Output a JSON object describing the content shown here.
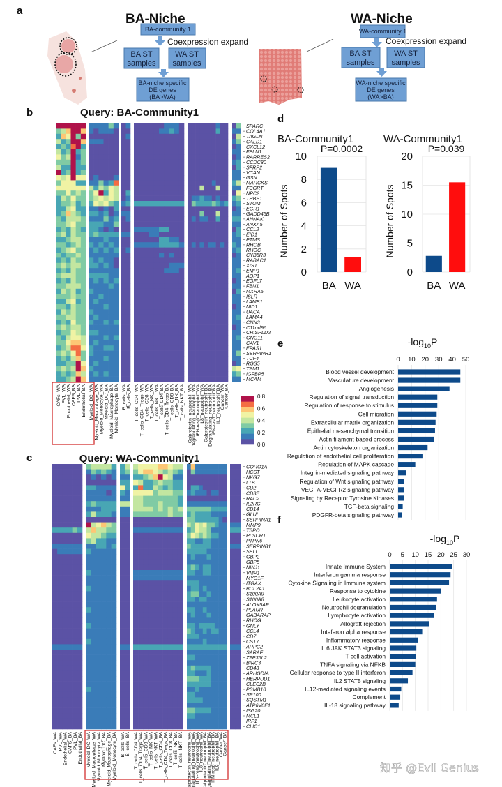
{
  "panel_labels": {
    "a": "a",
    "b": "b",
    "c": "c",
    "d": "d",
    "e": "e",
    "f": "f"
  },
  "panel_a": {
    "ba": {
      "title": "BA-Niche",
      "community": "BA-community 1",
      "expand": "Coexpression expand",
      "samples_ba": [
        "BA ST",
        "samples"
      ],
      "samples_wa": [
        "WA ST",
        "samples"
      ],
      "result": [
        "BA-niche specific",
        "DE genes",
        "(BA>WA)"
      ]
    },
    "wa": {
      "title": "WA-Niche",
      "community": "WA-community 1",
      "expand": "Coexpression expand",
      "samples_ba": [
        "BA ST",
        "samples"
      ],
      "samples_wa": [
        "WA ST",
        "samples"
      ],
      "result": [
        "WA-niche specific",
        "DE genes",
        "(WA>BA)"
      ]
    }
  },
  "colorbar": {
    "ticks": [
      "0.8",
      "0.6",
      "0.4",
      "0.2",
      "0.0"
    ],
    "colormap": [
      "#5b52a5",
      "#3a7cb8",
      "#48a6b4",
      "#80cba4",
      "#c3e6a0",
      "#f0f3a4",
      "#fdc675",
      "#f46d43",
      "#b0124a"
    ]
  },
  "watermark": "知乎 @Evil Genius",
  "chart_data": [
    {
      "type": "heatmap",
      "title": "Query: BA-Community1",
      "range": [
        0,
        0.8
      ],
      "columns": [
        "CAFs_WA",
        "PVL_WA",
        "Endothelial_WA",
        "CAFS_BA",
        "PVL_BA",
        "Endothelial_BA",
        "Myeloid_DC_WA",
        "Myeloid_Macrophage_WA",
        "Myeloid_Monocyte_WA",
        "Myeloid_DC_BA",
        "Myeloid_Macrophage_BA",
        "Myeloid_Monocyte_BA",
        "B_cells_WA",
        "B_cells_BA",
        "T_cells_CD4_WA",
        "T_cells_CD4_Tregs_WA",
        "T_cells_CD8_WA",
        "T_cells_NK_WA",
        "T_cells_NKT_WA",
        "T_cells_CD4_BA",
        "T_cells_CD4_Tregs_BA",
        "T_cells_CD8_BA",
        "T_cells_NK_BA",
        "T_cells_NKT_BA",
        "Calprotectin_neutrophil_WA",
        "Degranulating_neutrophil_WA",
        "IFN-resp_neutrophil_WA",
        "IL8_neutrophil_WA",
        "Calprotectin_neutrophil_BA",
        "Degranulating_neutrophil_BA",
        "IFN-resp_neutrophil_BA",
        "IL8_neutrophil_BA",
        "Cancer_WA",
        "Cancer_BA"
      ],
      "highlighted_columns": [
        "CAFs_WA",
        "PVL_WA",
        "Endothelial_WA",
        "CAFS_BA",
        "PVL_BA",
        "Endothelial_BA"
      ],
      "genes": [
        "SPARC",
        "COL4A1",
        "TAGLN",
        "CALD1",
        "CXCL12",
        "FBLN1",
        "RARRES2",
        "CCDC80",
        "SFRP2",
        "VCAN",
        "GSN",
        "MARCKS",
        "FCGRT",
        "NPC2",
        "THBS1",
        "STOM",
        "EGR1",
        "GADD45B",
        "AHNAK",
        "ANXA5",
        "CCL2",
        "EID1",
        "PTMS",
        "RHOB",
        "RHOC",
        "CYB5R3",
        "RABAC1",
        "XIST",
        "EMP1",
        "AQP1",
        "EGFL7",
        "FBN1",
        "MXRA5",
        "ISLR",
        "LAMB1",
        "NID1",
        "UACA",
        "LAMA4",
        "CNN3",
        "C11orf96",
        "CRISPLD2",
        "GNG11",
        "CAV1",
        "EPAS1",
        "SERPINH1",
        "TCF4",
        "RGS5",
        "TPM1",
        "IGFBP5",
        "MCAM"
      ],
      "values_x10": [
        "888888|111131|01|0000001110|0000000100|03",
        "346886|101110|00|0000011210|0000000200|11",
        "265838|000000|01|0000000000|0000000000|04",
        "423886|111000|00|0000000000|0000000000|13",
        "232782|000000|00|0000000000|0000000000|01",
        "423823|000000|00|0000000000|0000000000|11",
        "534813|000000|00|0000000000|0000000000|01",
        "333823|000000|00|0000000000|0000000000|12",
        "422822|000000|00|0000000000|0000000000|02",
        "823823|000000|00|0000000000|0000000000|11",
        "545855|010001|00|0000000000|0000000000|11",
        "355522|113127|00|0000000000|0000001000|24",
        "555555|424354|00|0000000000|0004000400|11",
        "335343|358254|02|0000000000|0000000000|05",
        "243533|345454|01|0000000000|0112110100|23",
        "233423|254532|12|2222222222|0322223212|12",
        "224522|110102|00|0000000000|0000000000|01",
        "236432|221201|11|0000000000|0003000400|11",
        "324443|111312|01|0000000000|0101100200|22",
        "334533|222113|00|0000000000|0000000000|11",
        "232432|221010|00|1111122000|0000000000|02",
        "342433|232222|11|0001100000|0000000000|12",
        "223443|111211|00|0000022110|0000000000|11",
        "332343|212121|00|1111122221|0101011010|21",
        "234533|121212|01|0000000000|0000000000|12",
        "323343|111111|00|0000010100|0000000000|01",
        "232433|212110|00|0000000000|0000000000|11",
        "343443|221210|00|0000000111|0000000000|11",
        "232433|111111|00|0000001110|0000000000|12",
        "344433|222211|00|0000000000|0000000000|11",
        "232433|121212|00|0000000000|0000000000|01",
        "334443|111121|00|0000000000|0000000000|11",
        "243423|211111|00|0000000000|0000000000|02",
        "333433|112111|00|0000000000|0000000000|11",
        "224523|121111|00|0000000000|0000000000|11",
        "332433|111211|00|0000000000|0000000000|01",
        "243433|211111|00|0000000000|0000000000|11",
        "334433|121111|00|0000000000|0000000000|12",
        "232533|211212|00|0000000000|0000000000|11",
        "343443|111111|00|0000000000|0000000000|01",
        "233543|221111|00|0000000000|0000000000|11",
        "324554|111212|00|0000000000|0000000000|12",
        "335664|121111|00|0000000000|0000000000|11",
        "234775|211221|00|0000000000|0000000000|11",
        "343573|211111|00|0000000000|0000000000|13",
        "232463|111211|00|0000000000|0000000000|11",
        "223385|121111|00|0000000000|0000000000|01",
        "343486|211111|00|0000000000|0000000000|45",
        "232364|121211|00|0000000000|0000000000|23",
        "223486|111111|00|0000000000|0000000000|11"
      ]
    },
    {
      "type": "heatmap",
      "title": "Query: WA-Community1",
      "range": [
        0,
        0.8
      ],
      "columns": [
        "CAFs_WA",
        "PVL_WA",
        "Endothelial_WA",
        "CAFS_BA",
        "PVL_BA",
        "Endothelial_BA",
        "Myeloid_DC_WA",
        "Myeloid_Macrophage_WA",
        "Myeloid_Monocyte_WA",
        "Myeloid_DC_BA",
        "Myeloid_Macrophage_BA",
        "Myeloid_Monocyte_BA",
        "B_cells_WA",
        "B_cells_BA",
        "T_cells_CD4_WA",
        "T_cells_CD4_Tregs_WA",
        "T_cells_CD8_WA",
        "T_cells_NK_WA",
        "T_cells_NKT_WA",
        "T_cells_CD4_BA",
        "T_cells_CD4_Tregs_BA",
        "T_cells_CD8_BA",
        "T_cells_NK_BA",
        "T_cells_NKT_BA",
        "Calprotectin_neutrophil_WA",
        "Degranulating_neutrophil_WA",
        "IFN-resp_neutrophil_WA",
        "IL8_neutrophil_WA",
        "Calprotectin_neutrophil_BA",
        "Degranulating_neutrophil_BA",
        "IFN-resp_neutrophil_BA",
        "IL8_neutrophil_BA",
        "Cancer_WA",
        "Cancer_BA"
      ],
      "highlighted_columns": [
        "Myeloid_DC_WA",
        "Myeloid_Macrophage_WA",
        "Myeloid_Monocyte_WA",
        "Myeloid_DC_BA",
        "Myeloid_Macrophage_BA",
        "Myeloid_Monocyte_BA",
        "B_cells_WA",
        "B_cells_BA",
        "T_cells_CD4_WA",
        "T_cells_CD4_Tregs_WA",
        "T_cells_CD8_WA",
        "T_cells_NK_WA",
        "T_cells_NKT_WA",
        "T_cells_CD4_BA",
        "T_cells_CD4_Tregs_BA",
        "T_cells_CD8_BA",
        "T_cells_NK_BA",
        "T_cells_NKT_BA",
        "Calprotectin_neutrophil_WA",
        "Degranulating_neutrophil_WA",
        "IFN-resp_neutrophil_WA",
        "IL8_neutrophil_WA",
        "Calprotectin_neutrophil_BA",
        "Degranulating_neutrophil_BA",
        "IFN-resp_neutrophil_BA",
        "IL8_neutrophil_BA"
      ],
      "genes": [
        "CORO1A",
        "HCST",
        "NKG7",
        "LTB",
        "CD2",
        "CD3E",
        "RAC2",
        "IL2RG",
        "CD14",
        "GLUL",
        "SERPINA1",
        "MMP9",
        "TSPO",
        "PLSCR1",
        "PTPN6",
        "SERPINB1",
        "SELL",
        "GBP2",
        "GBP5",
        "NINJ1",
        "VMP1",
        "MYO1F",
        "ITGAX",
        "BCL2A1",
        "S100A9",
        "S100A8",
        "ALOX5AP",
        "PLAUR",
        "GABARAP",
        "RHOG",
        "GNLY",
        "CCL4",
        "CD7",
        "CST7",
        "ARPC2",
        "SARAF",
        "ZFP36L2",
        "BIRC3",
        "CD48",
        "ARHGDIA",
        "HERPUD1",
        "CLEC2B",
        "PSMB10",
        "SP100",
        "SQSTM1",
        "ATP6V0E1",
        "ISG20",
        "MCL1",
        "IRF1",
        "CLIC1"
      ],
      "values_x10": [
        "000000|344442|24|4555566544|1611111111|00",
        "000000|132321|23|3566543432|0311111111|00",
        "000000|010101|11|2234685411|0000000000|00",
        "000000|000000|22|5422343322|0000000000|00",
        "000000|221111|52|2722432322|0221000000|00",
        "000000|111101|21|5555344433|1211101100|00",
        "000000|111111|11|4433333332|0000000000|00",
        "000000|232222|44|4433343332|1111111111|00",
        "000000|111222|11|4444343434|3333332222|00",
        "000000|242221|11|3333333433|2322221111|00",
        "000000|000000|00|0000000000|3322222210|00",
        "000000|845643|00|0000000000|4354533211|11",
        "222232|464433|00|1111111111|2354431111|22",
        "000000|544322|00|0000000000|3543432211|00",
        "000000|342211|00|0000000000|2211221111|00",
        "111111|112212|00|0000000000|3222221111|11",
        "011111|211111|00|0000000000|2222211111|00",
        "000000|111111|00|0000000000|1211121111|00",
        "000000|111111|00|0000000000|1111111111|00",
        "000000|111111|00|0000000000|2321221111|00",
        "000000|211111|00|1111111111|2211221111|00",
        "000000|111111|00|1111111111|1111111111|00",
        "000000|111111|00|0000000000|2221111111|00",
        "000000|211111|00|0000000000|1221211111|00",
        "000000|111111|00|0000000000|2331121111|00",
        "000000|111111|00|0000000000|2212211111|00",
        "000000|111111|00|0000000000|1111111111|00",
        "000000|211111|00|0000000000|2211211111|00",
        "000000|111111|00|0000000000|1211121111|00",
        "000000|111111|00|0000000000|1111111111|00",
        "000000|211111|00|0000000000|2212222111|00",
        "000000|111111|00|0000000000|3211212211|00",
        "000000|111111|00|0000000000|2221111111|00",
        "000000|211111|00|0000000000|1111211111|00",
        "111111|111111|11|2222222222|2222222222|11",
        "000000|111111|00|0000000000|1111111111|00",
        "000000|111111|00|0000000000|2211111111|00",
        "000000|111111|00|0000000000|1111111111|00",
        "000000|111111|00|0000000000|2322221111|00",
        "000000|111111|00|0000000000|2211121111|00",
        "000000|111111|00|0000000000|3332221111|00",
        "000000|111111|00|0000000000|2222221111|00",
        "000000|211111|00|0000000000|1121111111|00",
        "000000|111111|00|0000000000|2211111111|00",
        "000000|111111|00|0000000000|2222111111|00",
        "000000|111111|00|0000000000|1111111111|00",
        "000000|111111|00|0000000000|3322221111|00",
        "000000|111111|00|0000000000|2211111111|00",
        "000000|111111|00|0000000000|1111111111|00",
        "000000|111111|00|0000000000|1111111111|00"
      ]
    },
    {
      "type": "bar",
      "title": "BA-Community1",
      "annotation": "P=0.0002",
      "categories": [
        "BA",
        "WA"
      ],
      "values": [
        9,
        1.3
      ],
      "colors": [
        "#0d4a8a",
        "#ff0d0d"
      ],
      "ylabel": "Number of Spots",
      "ylim": [
        0,
        10
      ],
      "yticks": [
        "0",
        "2",
        "4",
        "6",
        "8",
        "10"
      ],
      "grid": true
    },
    {
      "type": "bar",
      "title": "WA-Community1",
      "annotation": "P=0.039",
      "categories": [
        "BA",
        "WA"
      ],
      "values": [
        2.8,
        15.5
      ],
      "colors": [
        "#0d4a8a",
        "#ff0d0d"
      ],
      "ylabel": "Number of Spots",
      "ylim": [
        0,
        20
      ],
      "yticks": [
        "0",
        "5",
        "10",
        "15",
        "20"
      ],
      "grid": true
    },
    {
      "type": "bar",
      "orientation": "horizontal",
      "xlabel": "-log",
      "xlabel_sub": "10",
      "xlabel_end": "P",
      "xlim": [
        0,
        50
      ],
      "xticks": [
        "0",
        "10",
        "20",
        "30",
        "40",
        "50"
      ],
      "color": "#0d4a8a",
      "categories": [
        "Blood vessel development",
        "Vasculature development",
        "Angiogenesis",
        "Regulation of signal transduction",
        "Regulation of response to stimulus",
        "Cell migration",
        "Extracellular matrix organization",
        "Epithelial mesenchymal transition",
        "Actin filament-based process",
        "Actin cytoskeleton organization",
        "Regulation of endothelial cell proliferation",
        "Regulation of MAPK cascade",
        "Integrin-mediated signaling pathway",
        "Regulation of Wnt signaling pathway",
        "VEGFA-VEGFR2 signaling pathway",
        "Signaling by Receptor Tyrosine Kinases",
        "TGF-beta signaling",
        "PDGFR-beta signaling pathway"
      ],
      "values": [
        46,
        46,
        38,
        29,
        29,
        28.5,
        27.7,
        27.3,
        26.5,
        21.8,
        18,
        12.7,
        5.8,
        4.3,
        4.3,
        4.3,
        3.4,
        2.6
      ]
    },
    {
      "type": "bar",
      "orientation": "horizontal",
      "xlabel": "-log",
      "xlabel_sub": "10",
      "xlabel_end": "P",
      "xlim": [
        0,
        30
      ],
      "xticks": [
        "0",
        "5",
        "10",
        "15",
        "20",
        "25",
        "30"
      ],
      "color": "#0d4a8a",
      "categories": [
        "Innate Immune System",
        "Interferon gamma response",
        "Cytokine Signaling in Immune system",
        "Response to cytokine",
        "Leukocyte activation",
        "Neutrophil degranulation",
        "Lymphocyte activation",
        "Allograft rejection",
        "Inteferon alpha response",
        "Inflammatory response",
        "IL6 JAK STAT3 signaling",
        "T cell activation",
        "TNFA signaling via NFKB",
        "Cellular response to type II interferon",
        "IL2 STAT5 signaling",
        "IL12-mediated signaling events",
        "Complement",
        "IL-18 signaling pathway"
      ],
      "values": [
        24.5,
        23.8,
        23.2,
        20,
        18.5,
        18,
        17.2,
        15.5,
        12.7,
        11.1,
        10.4,
        10.2,
        10,
        8.9,
        7.1,
        4.5,
        4.1,
        3.5
      ]
    }
  ]
}
